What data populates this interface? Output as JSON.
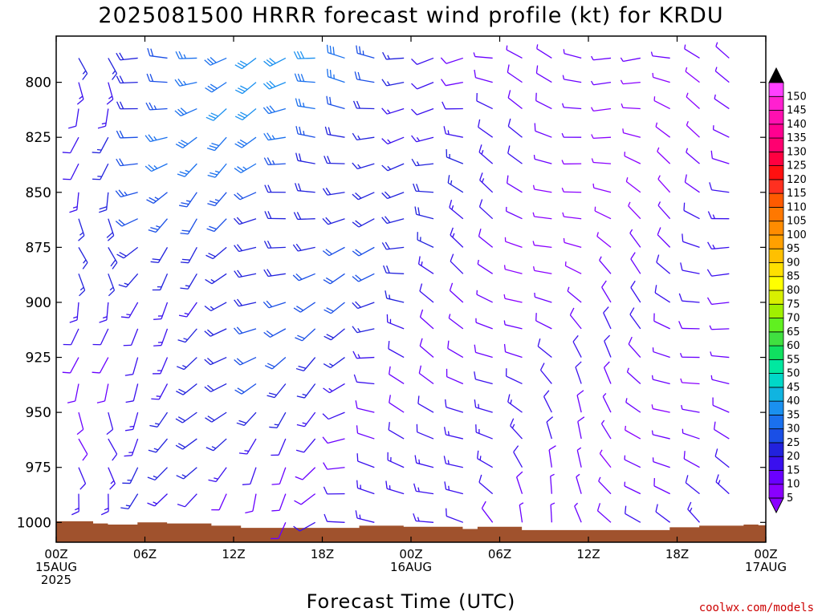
{
  "chart_data": {
    "type": "wind-barb-profile",
    "title": "2025081500 HRRR forecast wind profile (kt) for KRDU",
    "xlabel": "Forecast Time (UTC)",
    "ylabel": "",
    "x_ticks": [
      {
        "hour": 0,
        "lines": [
          "00Z",
          "15AUG",
          "2025"
        ]
      },
      {
        "hour": 6,
        "lines": [
          "06Z"
        ]
      },
      {
        "hour": 12,
        "lines": [
          "12Z"
        ]
      },
      {
        "hour": 18,
        "lines": [
          "18Z"
        ]
      },
      {
        "hour": 24,
        "lines": [
          "00Z",
          "16AUG"
        ]
      },
      {
        "hour": 30,
        "lines": [
          "06Z"
        ]
      },
      {
        "hour": 36,
        "lines": [
          "12Z"
        ]
      },
      {
        "hour": 42,
        "lines": [
          "18Z"
        ]
      },
      {
        "hour": 48,
        "lines": [
          "00Z",
          "17AUG"
        ]
      }
    ],
    "x_range_hours": [
      0,
      48
    ],
    "y_ticks_hpa": [
      800,
      825,
      850,
      875,
      900,
      925,
      950,
      975,
      1000
    ],
    "y_range_hpa": [
      779,
      1009
    ],
    "y_axis": "pressure (hPa), inverted",
    "barb_levels_hpa": [
      779,
      789,
      800,
      812,
      825,
      837,
      850,
      862,
      875,
      887,
      900,
      912,
      925,
      937,
      950,
      962,
      975,
      987,
      1000
    ],
    "colorbar": {
      "unit": "kt",
      "labels": [
        5,
        10,
        15,
        20,
        25,
        30,
        35,
        40,
        45,
        50,
        55,
        60,
        65,
        70,
        75,
        80,
        85,
        90,
        95,
        100,
        105,
        110,
        115,
        120,
        125,
        130,
        135,
        140,
        145,
        150
      ],
      "colors": [
        "#8a00ff",
        "#6a00ff",
        "#3a10ee",
        "#2222dd",
        "#1a4fe6",
        "#1a70ee",
        "#1a90f0",
        "#10b4e0",
        "#00d8c8",
        "#00e8a0",
        "#10e060",
        "#40e040",
        "#60f020",
        "#a0f000",
        "#d8f000",
        "#ffff00",
        "#ffe000",
        "#ffc000",
        "#ffa000",
        "#ff8c00",
        "#ff7800",
        "#ff5a00",
        "#ff3020",
        "#ff1010",
        "#ff0040",
        "#ff0070",
        "#ff0090",
        "#ff10b0",
        "#ff20d0",
        "#ff40ff"
      ],
      "over_color": "#000000",
      "under_color": "#8a00ff"
    },
    "terrain_color": "#a0522d",
    "surface_pressure_hpa": [
      {
        "hour": 0,
        "p": 999.5
      },
      {
        "hour": 2.5,
        "p": 1000.5
      },
      {
        "hour": 3.5,
        "p": 1001
      },
      {
        "hour": 5.5,
        "p": 1000
      },
      {
        "hour": 7.5,
        "p": 1000.5
      },
      {
        "hour": 10.5,
        "p": 1001.5
      },
      {
        "hour": 12.5,
        "p": 1002.5
      },
      {
        "hour": 20.5,
        "p": 1001.5
      },
      {
        "hour": 23.5,
        "p": 1002
      },
      {
        "hour": 27.5,
        "p": 1003
      },
      {
        "hour": 28.5,
        "p": 1002
      },
      {
        "hour": 31.5,
        "p": 1003.5
      },
      {
        "hour": 41.5,
        "p": 1002.2
      },
      {
        "hour": 43.5,
        "p": 1001.5
      },
      {
        "hour": 46.5,
        "p": 1001
      },
      {
        "hour": 47.5,
        "p": 1001.3
      },
      {
        "hour": 48,
        "p": 1001.5
      }
    ]
  },
  "credit": "coolwx.com/models"
}
